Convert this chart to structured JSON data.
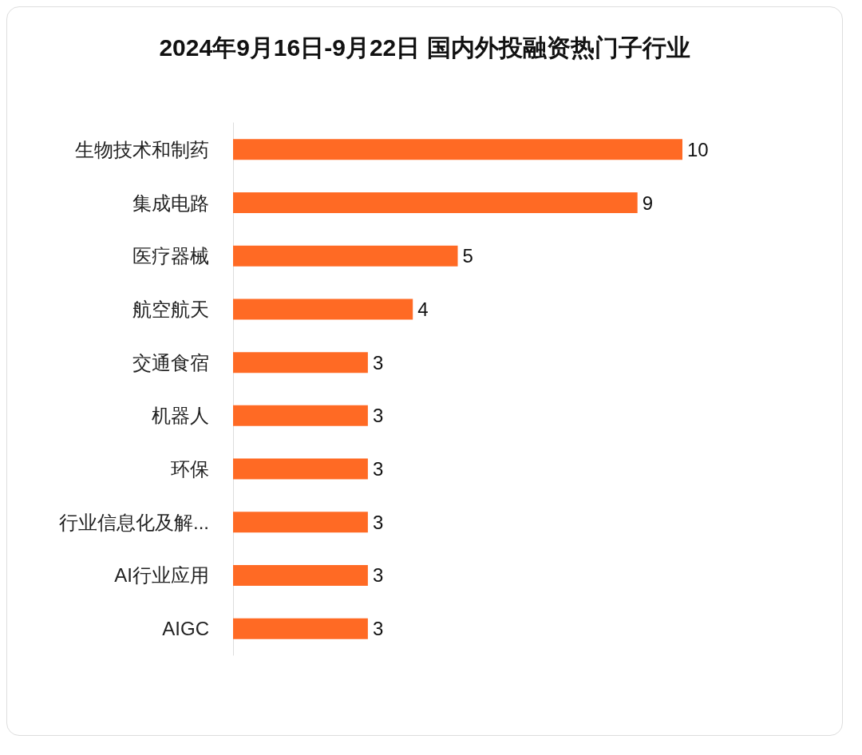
{
  "chart_data": {
    "type": "bar",
    "orientation": "horizontal",
    "title": "2024年9月16日-9月22日 国内外投融资热门子行业",
    "categories": [
      "生物技术和制药",
      "集成电路",
      "医疗器械",
      "航空航天",
      "交通食宿",
      "机器人",
      "环保",
      "行业信息化及解...",
      "AI行业应用",
      "AIGC"
    ],
    "values": [
      10,
      9,
      5,
      4,
      3,
      3,
      3,
      3,
      3,
      3
    ],
    "color": "#ff6a24",
    "data_labels": true,
    "tick_labels": "y"
  }
}
